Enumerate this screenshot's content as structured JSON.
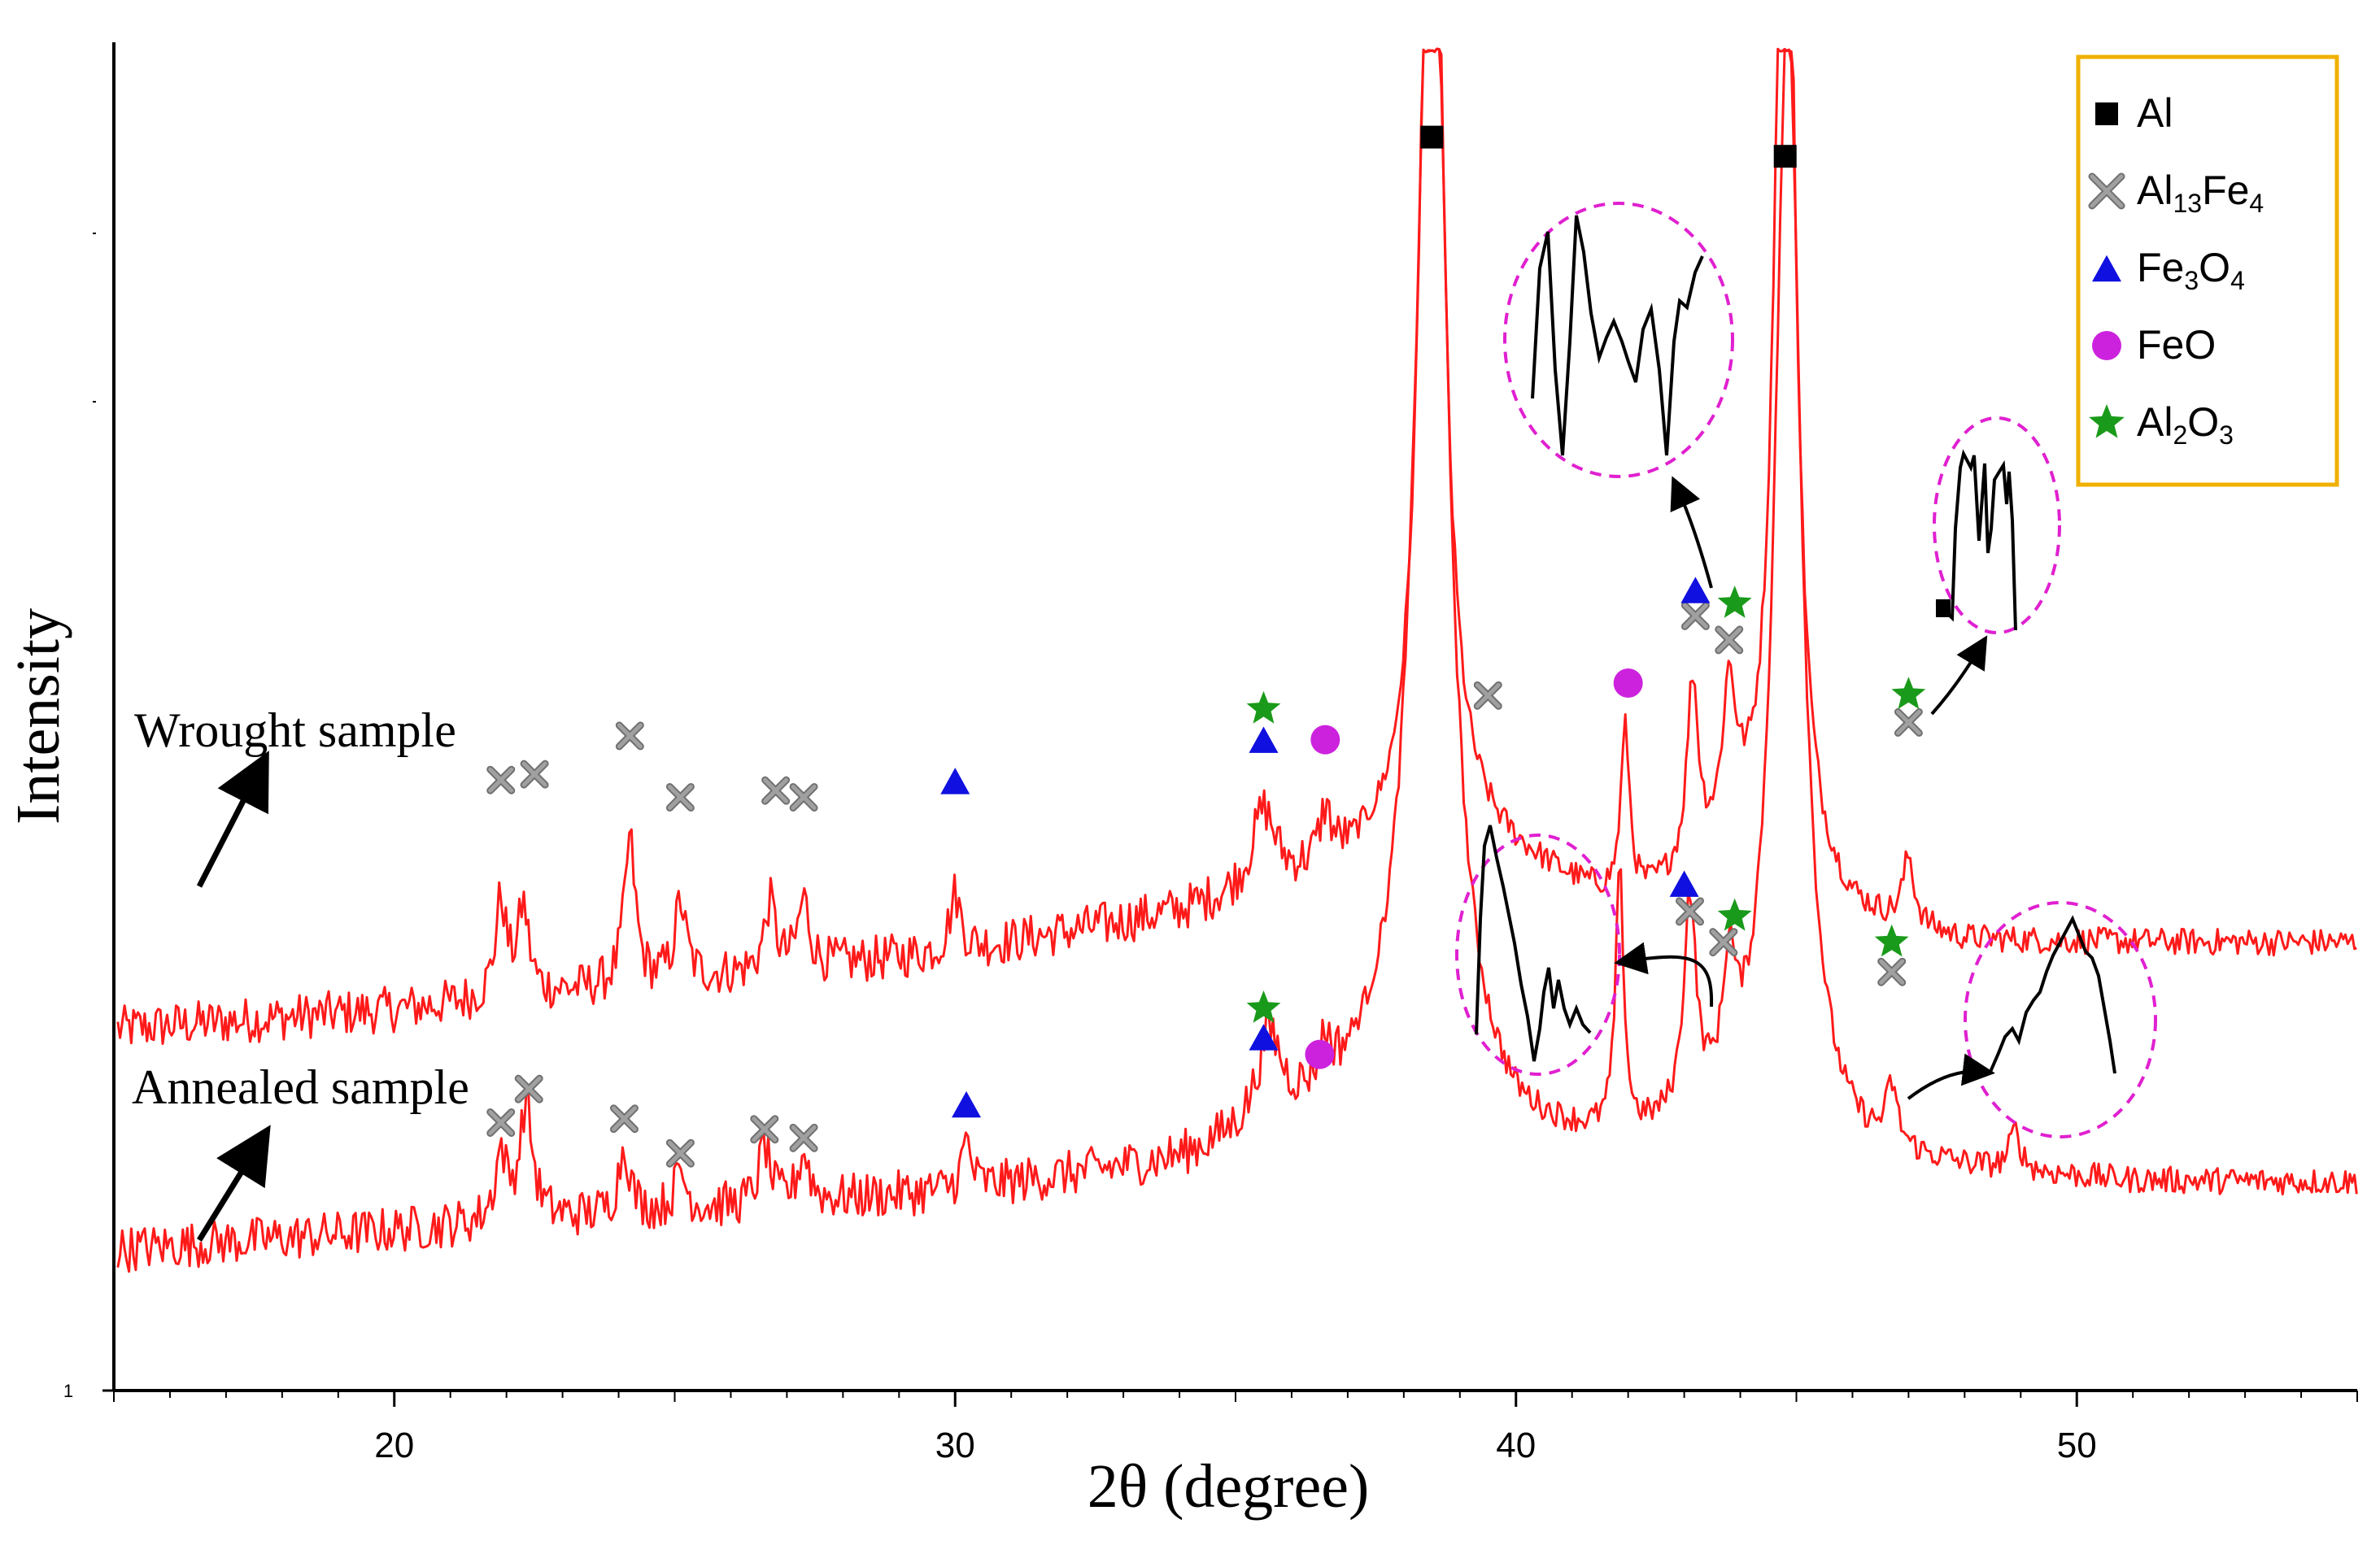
{
  "chart_data": {
    "type": "line",
    "title": "",
    "xlabel": "2θ (degree)",
    "ylabel": "Intensity",
    "xlim": [
      15,
      55
    ],
    "ylim": [
      0,
      100
    ],
    "y_scale_note": "relative intensity (arbitrary units), lower axis tick labelled 1",
    "x_ticks": [
      "20",
      "30",
      "40",
      "50"
    ],
    "x_tick_values": [
      20,
      30,
      40,
      50
    ],
    "y_tick_label": "1",
    "series": [
      {
        "name": "Wrought sample",
        "label": "Wrought sample",
        "color": "#ff1a1a",
        "baseline": [
          [
            15,
            30
          ],
          [
            20,
            32
          ],
          [
            25,
            35
          ],
          [
            30,
            38
          ],
          [
            34,
            42
          ],
          [
            36,
            45
          ],
          [
            37,
            47
          ],
          [
            39,
            50
          ],
          [
            42,
            42
          ],
          [
            44,
            48
          ],
          [
            46,
            41
          ],
          [
            48,
            39
          ],
          [
            51,
            39
          ],
          [
            55,
            39
          ]
        ],
        "peaks": [
          {
            "x": 21.9,
            "h": 10,
            "w": 0.12
          },
          {
            "x": 22.3,
            "h": 9,
            "w": 0.12
          },
          {
            "x": 24.2,
            "h": 15,
            "w": 0.12
          },
          {
            "x": 25.1,
            "h": 8,
            "w": 0.12
          },
          {
            "x": 26.7,
            "h": 7,
            "w": 0.12
          },
          {
            "x": 27.3,
            "h": 7,
            "w": 0.12
          },
          {
            "x": 30.0,
            "h": 6,
            "w": 0.12
          },
          {
            "x": 35.5,
            "h": 8,
            "w": 0.25
          },
          {
            "x": 36.6,
            "h": 5,
            "w": 0.12
          },
          {
            "x": 38.5,
            "h": 130,
            "w": 0.22
          },
          {
            "x": 41.95,
            "h": 18,
            "w": 0.1
          },
          {
            "x": 43.15,
            "h": 19,
            "w": 0.12
          },
          {
            "x": 43.8,
            "h": 15,
            "w": 0.14
          },
          {
            "x": 44.8,
            "h": 130,
            "w": 0.2
          },
          {
            "x": 47.0,
            "h": 7,
            "w": 0.12
          }
        ]
      },
      {
        "name": "Annealed sample",
        "label": "Annealed sample",
        "color": "#ff1a1a",
        "baseline": [
          [
            15,
            7
          ],
          [
            20,
            9
          ],
          [
            25,
            11
          ],
          [
            30,
            13
          ],
          [
            34,
            16
          ],
          [
            36,
            20
          ],
          [
            38,
            25
          ],
          [
            40,
            18
          ],
          [
            42,
            17
          ],
          [
            44,
            20
          ],
          [
            46,
            16
          ],
          [
            48,
            15
          ],
          [
            51,
            14
          ],
          [
            55,
            14
          ]
        ],
        "peaks": [
          {
            "x": 21.9,
            "h": 7,
            "w": 0.12
          },
          {
            "x": 22.35,
            "h": 12,
            "w": 0.14
          },
          {
            "x": 24.1,
            "h": 7,
            "w": 0.12
          },
          {
            "x": 25.1,
            "h": 4,
            "w": 0.12
          },
          {
            "x": 26.6,
            "h": 6,
            "w": 0.12
          },
          {
            "x": 27.3,
            "h": 5,
            "w": 0.12
          },
          {
            "x": 30.2,
            "h": 5,
            "w": 0.1
          },
          {
            "x": 35.6,
            "h": 9,
            "w": 0.25
          },
          {
            "x": 36.6,
            "h": 4,
            "w": 0.12
          },
          {
            "x": 38.5,
            "h": 132,
            "w": 0.33
          },
          {
            "x": 41.85,
            "h": 27,
            "w": 0.09
          },
          {
            "x": 43.1,
            "h": 22,
            "w": 0.13
          },
          {
            "x": 43.8,
            "h": 12,
            "w": 0.12
          },
          {
            "x": 44.85,
            "h": 118,
            "w": 0.28
          },
          {
            "x": 46.7,
            "h": 6,
            "w": 0.12
          },
          {
            "x": 48.9,
            "h": 4,
            "w": 0.12
          }
        ]
      }
    ],
    "phase_markers": [
      {
        "phase": "Al",
        "x": 38.5,
        "y": 123
      },
      {
        "phase": "Al",
        "x": 44.8,
        "y": 121
      },
      {
        "phase": "Al13Fe4",
        "x": 21.9,
        "y": 56
      },
      {
        "phase": "Al13Fe4",
        "x": 22.5,
        "y": 56.6
      },
      {
        "phase": "Al13Fe4",
        "x": 24.2,
        "y": 60.6
      },
      {
        "phase": "Al13Fe4",
        "x": 25.1,
        "y": 54.2
      },
      {
        "phase": "Al13Fe4",
        "x": 26.8,
        "y": 54.9
      },
      {
        "phase": "Al13Fe4",
        "x": 27.3,
        "y": 54.2
      },
      {
        "phase": "Al13Fe4",
        "x": 39.5,
        "y": 64.8
      },
      {
        "phase": "Al13Fe4",
        "x": 43.2,
        "y": 73.1
      },
      {
        "phase": "Al13Fe4",
        "x": 43.8,
        "y": 70.6
      },
      {
        "phase": "Al13Fe4",
        "x": 47.0,
        "y": 62.0
      },
      {
        "phase": "Fe3O4",
        "x": 30.0,
        "y": 55.9
      },
      {
        "phase": "Fe3O4",
        "x": 35.5,
        "y": 60.2
      },
      {
        "phase": "Fe3O4",
        "x": 43.2,
        "y": 75.8
      },
      {
        "phase": "FeO",
        "x": 36.6,
        "y": 60.2
      },
      {
        "phase": "FeO",
        "x": 42.0,
        "y": 66.1
      },
      {
        "phase": "Al2O3",
        "x": 35.5,
        "y": 63.4
      },
      {
        "phase": "Al2O3",
        "x": 43.9,
        "y": 74.4
      },
      {
        "phase": "Al2O3",
        "x": 47.0,
        "y": 64.9
      },
      {
        "phase": "Al13Fe4",
        "x": 21.9,
        "y": 20.3
      },
      {
        "phase": "Al13Fe4",
        "x": 22.4,
        "y": 23.8
      },
      {
        "phase": "Al13Fe4",
        "x": 24.1,
        "y": 20.7
      },
      {
        "phase": "Al13Fe4",
        "x": 25.1,
        "y": 17.1
      },
      {
        "phase": "Al13Fe4",
        "x": 26.6,
        "y": 19.6
      },
      {
        "phase": "Al13Fe4",
        "x": 27.3,
        "y": 18.7
      },
      {
        "phase": "Al13Fe4",
        "x": 43.1,
        "y": 42.3
      },
      {
        "phase": "Al13Fe4",
        "x": 43.7,
        "y": 39.1
      },
      {
        "phase": "Al13Fe4",
        "x": 46.7,
        "y": 36.0
      },
      {
        "phase": "Fe3O4",
        "x": 30.2,
        "y": 22.2
      },
      {
        "phase": "Fe3O4",
        "x": 35.5,
        "y": 29.2
      },
      {
        "phase": "Fe3O4",
        "x": 43.0,
        "y": 45.2
      },
      {
        "phase": "FeO",
        "x": 36.5,
        "y": 27.4
      },
      {
        "phase": "Al2O3",
        "x": 35.5,
        "y": 32.2
      },
      {
        "phase": "Al2O3",
        "x": 43.9,
        "y": 41.8
      },
      {
        "phase": "Al2O3",
        "x": 46.7,
        "y": 39.1
      }
    ],
    "legend": {
      "position": "top-right",
      "entries": [
        {
          "key": "Al",
          "symbol": "square",
          "color": "#000000",
          "text": "Al"
        },
        {
          "key": "Al13Fe4",
          "symbol": "cross",
          "color": "#a0a0a0",
          "text": "Al",
          "sub": "13",
          "text2": "Fe",
          "sub2": "4"
        },
        {
          "key": "Fe3O4",
          "symbol": "triangle",
          "color": "#1010e0",
          "text": "Fe",
          "sub": "3",
          "text2": "O",
          "sub2": "4"
        },
        {
          "key": "FeO",
          "symbol": "circle",
          "color": "#cc22dd",
          "text": "FeO"
        },
        {
          "key": "Al2O3",
          "symbol": "star",
          "color": "#1a9a1a",
          "text": "Al",
          "sub": "2",
          "text2": "O",
          "sub2": "3"
        }
      ],
      "border_color": "#f0b000"
    },
    "annotations": [
      {
        "text": "Wrought sample"
      },
      {
        "text": "Annealed sample"
      }
    ]
  }
}
